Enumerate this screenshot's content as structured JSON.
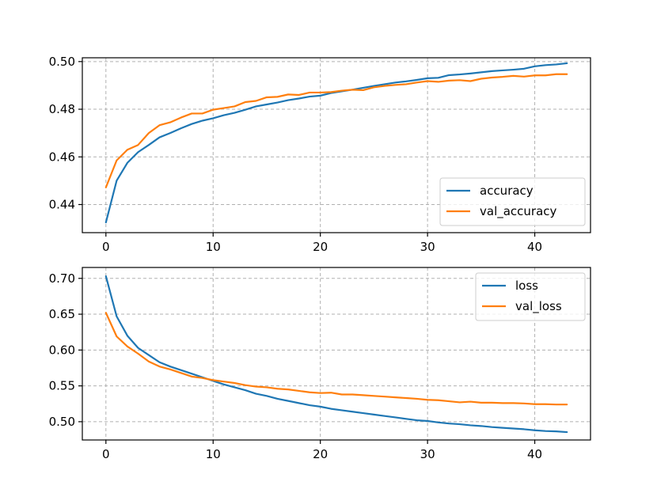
{
  "chart_data": [
    {
      "type": "line",
      "title": "",
      "xlabel": "",
      "ylabel": "",
      "xlim": [
        -2.2,
        45.2
      ],
      "ylim": [
        0.4282,
        0.5016
      ],
      "xticks": [
        0,
        10,
        20,
        30,
        40
      ],
      "yticks": [
        0.44,
        0.46,
        0.48,
        0.5
      ],
      "ytick_labels": [
        "0.44",
        "0.46",
        "0.48",
        "0.50"
      ],
      "grid": true,
      "legend_position": "lower right",
      "x": [
        0,
        1,
        2,
        3,
        4,
        5,
        6,
        7,
        8,
        9,
        10,
        11,
        12,
        13,
        14,
        15,
        16,
        17,
        18,
        19,
        20,
        21,
        22,
        23,
        24,
        25,
        26,
        27,
        28,
        29,
        30,
        31,
        32,
        33,
        34,
        35,
        36,
        37,
        38,
        39,
        40,
        41,
        42,
        43
      ],
      "series": [
        {
          "name": "accuracy",
          "color": "#1f77b4",
          "values": [
            0.4325,
            0.45,
            0.4575,
            0.462,
            0.465,
            0.4682,
            0.47,
            0.472,
            0.4738,
            0.4752,
            0.4762,
            0.4775,
            0.4785,
            0.4798,
            0.4812,
            0.482,
            0.4828,
            0.4838,
            0.4845,
            0.4853,
            0.4857,
            0.4868,
            0.4875,
            0.4882,
            0.489,
            0.4898,
            0.4905,
            0.4912,
            0.4917,
            0.4923,
            0.493,
            0.4932,
            0.4943,
            0.4946,
            0.495,
            0.4955,
            0.496,
            0.4963,
            0.4966,
            0.497,
            0.498,
            0.4985,
            0.4988,
            0.4993
          ]
        },
        {
          "name": "val_accuracy",
          "color": "#ff7f0e",
          "values": [
            0.4472,
            0.4585,
            0.463,
            0.465,
            0.47,
            0.4733,
            0.4745,
            0.4765,
            0.4782,
            0.4782,
            0.4798,
            0.4805,
            0.4812,
            0.483,
            0.4835,
            0.485,
            0.4852,
            0.4862,
            0.486,
            0.487,
            0.487,
            0.4872,
            0.4878,
            0.4882,
            0.488,
            0.4892,
            0.4898,
            0.4902,
            0.4905,
            0.4912,
            0.4918,
            0.4915,
            0.492,
            0.4922,
            0.4918,
            0.4928,
            0.4933,
            0.4936,
            0.494,
            0.4937,
            0.4942,
            0.4942,
            0.4947,
            0.4947
          ]
        }
      ]
    },
    {
      "type": "line",
      "title": "",
      "xlabel": "",
      "ylabel": "",
      "xlim": [
        -2.2,
        45.2
      ],
      "ylim": [
        0.4745,
        0.7152
      ],
      "xticks": [
        0,
        10,
        20,
        30,
        40
      ],
      "yticks": [
        0.5,
        0.55,
        0.6,
        0.65,
        0.7
      ],
      "ytick_labels": [
        "0.50",
        "0.55",
        "0.60",
        "0.65",
        "0.70"
      ],
      "grid": true,
      "legend_position": "upper right",
      "x": [
        0,
        1,
        2,
        3,
        4,
        5,
        6,
        7,
        8,
        9,
        10,
        11,
        12,
        13,
        14,
        15,
        16,
        17,
        18,
        19,
        20,
        21,
        22,
        23,
        24,
        25,
        26,
        27,
        28,
        29,
        30,
        31,
        32,
        33,
        34,
        35,
        36,
        37,
        38,
        39,
        40,
        41,
        42,
        43
      ],
      "series": [
        {
          "name": "loss",
          "color": "#1f77b4",
          "values": [
            0.703,
            0.647,
            0.62,
            0.603,
            0.593,
            0.583,
            0.577,
            0.572,
            0.567,
            0.562,
            0.557,
            0.552,
            0.548,
            0.544,
            0.539,
            0.536,
            0.532,
            0.529,
            0.526,
            0.523,
            0.521,
            0.518,
            0.516,
            0.514,
            0.512,
            0.51,
            0.508,
            0.506,
            0.504,
            0.502,
            0.501,
            0.499,
            0.4975,
            0.4965,
            0.495,
            0.494,
            0.4925,
            0.4915,
            0.4905,
            0.4895,
            0.488,
            0.487,
            0.4865,
            0.4855
          ]
        },
        {
          "name": "val_loss",
          "color": "#ff7f0e",
          "values": [
            0.652,
            0.619,
            0.605,
            0.595,
            0.584,
            0.577,
            0.573,
            0.568,
            0.563,
            0.561,
            0.558,
            0.556,
            0.554,
            0.551,
            0.549,
            0.548,
            0.546,
            0.545,
            0.543,
            0.541,
            0.54,
            0.5405,
            0.538,
            0.538,
            0.537,
            0.536,
            0.535,
            0.534,
            0.533,
            0.532,
            0.5305,
            0.53,
            0.5285,
            0.527,
            0.528,
            0.5265,
            0.5265,
            0.526,
            0.526,
            0.5255,
            0.5245,
            0.5245,
            0.524,
            0.524
          ]
        }
      ]
    }
  ]
}
